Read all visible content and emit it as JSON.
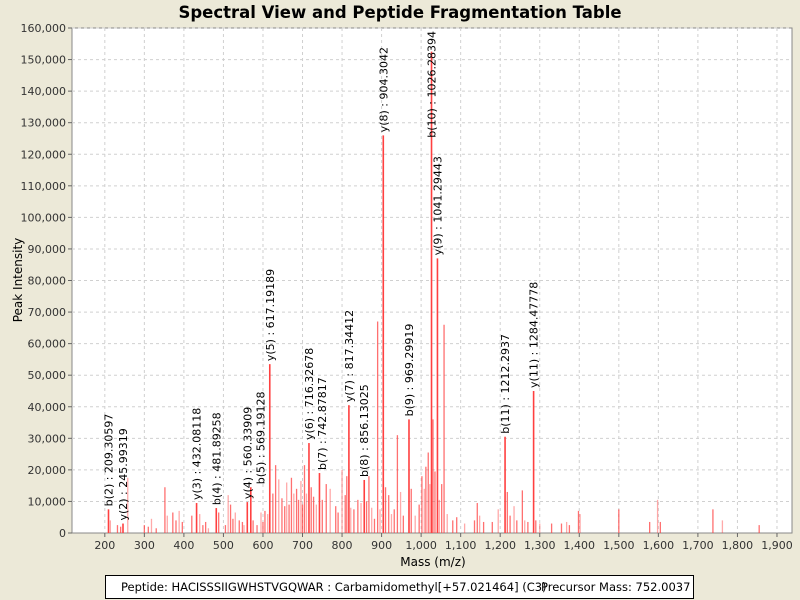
{
  "chart_data": {
    "type": "bar",
    "title": "Spectral View and Peptide Fragmentation Table",
    "xlabel": "Mass (m/z)",
    "ylabel": "Peak Intensity",
    "xlim": [
      117,
      1938
    ],
    "ylim": [
      0,
      160000
    ],
    "xticks": [
      200,
      300,
      400,
      500,
      600,
      700,
      800,
      900,
      1000,
      1100,
      1200,
      1300,
      1400,
      1500,
      1600,
      1700,
      1800,
      1900
    ],
    "xtick_labels": [
      "200",
      "300",
      "400",
      "500",
      "600",
      "700",
      "800",
      "900",
      "1,000",
      "1,100",
      "1,200",
      "1,300",
      "1,400",
      "1,500",
      "1,600",
      "1,700",
      "1,800",
      "1,900"
    ],
    "yticks": [
      0,
      10000,
      20000,
      30000,
      40000,
      50000,
      60000,
      70000,
      80000,
      90000,
      100000,
      110000,
      120000,
      130000,
      140000,
      150000,
      160000
    ],
    "ytick_labels": [
      "0",
      "10,000",
      "20,000",
      "30,000",
      "40,000",
      "50,000",
      "60,000",
      "70,000",
      "80,000",
      "90,000",
      "100,000",
      "110,000",
      "120,000",
      "130,000",
      "140,000",
      "150,000",
      "160,000"
    ],
    "grid": true,
    "color": "#ff4040",
    "annotations": [
      {
        "label": "b(2) : 209.30597",
        "mz": 209.31,
        "intensity": 7500
      },
      {
        "label": "y(2) : 245.99319",
        "mz": 245.99,
        "intensity": 3000
      },
      {
        "label": "y(3) : 432.08118",
        "mz": 432.08,
        "intensity": 9500
      },
      {
        "label": "b(4) : 481.89258",
        "mz": 481.89,
        "intensity": 7900
      },
      {
        "label": "y(4) : 560.33909",
        "mz": 560.34,
        "intensity": 9800
      },
      {
        "label": "b(5) : 569.19128",
        "mz": 569.19,
        "intensity": 14500
      },
      {
        "label": "y(5) : 617.19189",
        "mz": 617.19,
        "intensity": 53500
      },
      {
        "label": "y(6) : 716.32678",
        "mz": 716.33,
        "intensity": 28500
      },
      {
        "label": "b(7) : 742.87817",
        "mz": 742.88,
        "intensity": 19000
      },
      {
        "label": "y(7) : 817.34412",
        "mz": 817.34,
        "intensity": 40500
      },
      {
        "label": "b(8) : 856.13025",
        "mz": 856.13,
        "intensity": 16800
      },
      {
        "label": "y(8) : 904.3042",
        "mz": 904.3,
        "intensity": 126000
      },
      {
        "label": "b(9) : 969.29919",
        "mz": 969.3,
        "intensity": 36000
      },
      {
        "label": "b(10) : 1026.28394",
        "mz": 1026.28,
        "intensity": 152500
      },
      {
        "label": "y(9) : 1041.29443",
        "mz": 1041.29,
        "intensity": 87000
      },
      {
        "label": "b(11) : 1212.2937",
        "mz": 1212.29,
        "intensity": 30500
      },
      {
        "label": "y(11) : 1284.47778",
        "mz": 1284.48,
        "intensity": 45000
      }
    ],
    "peaks": [
      [
        214,
        4000
      ],
      [
        232,
        2500
      ],
      [
        240,
        2000
      ],
      [
        258,
        17500
      ],
      [
        300,
        2500
      ],
      [
        310,
        2000
      ],
      [
        318,
        4500
      ],
      [
        330,
        1500
      ],
      [
        352,
        14500
      ],
      [
        358,
        5500
      ],
      [
        372,
        6500
      ],
      [
        380,
        4000
      ],
      [
        388,
        7000
      ],
      [
        396,
        3500
      ],
      [
        420,
        5500
      ],
      [
        440,
        6000
      ],
      [
        448,
        2500
      ],
      [
        455,
        3500
      ],
      [
        462,
        1500
      ],
      [
        488,
        6500
      ],
      [
        505,
        2500
      ],
      [
        512,
        12000
      ],
      [
        518,
        9000
      ],
      [
        524,
        4500
      ],
      [
        530,
        6500
      ],
      [
        540,
        4000
      ],
      [
        548,
        3500
      ],
      [
        552,
        2500
      ],
      [
        575,
        4000
      ],
      [
        585,
        2500
      ],
      [
        595,
        6500
      ],
      [
        600,
        3500
      ],
      [
        605,
        7000
      ],
      [
        612,
        6000
      ],
      [
        625,
        12500
      ],
      [
        632,
        21500
      ],
      [
        640,
        17000
      ],
      [
        648,
        11000
      ],
      [
        655,
        8500
      ],
      [
        660,
        16000
      ],
      [
        666,
        9000
      ],
      [
        672,
        17500
      ],
      [
        678,
        12500
      ],
      [
        685,
        14000
      ],
      [
        690,
        10500
      ],
      [
        696,
        16500
      ],
      [
        700,
        9000
      ],
      [
        705,
        21500
      ],
      [
        710,
        12500
      ],
      [
        722,
        14500
      ],
      [
        728,
        11500
      ],
      [
        735,
        9000
      ],
      [
        750,
        10500
      ],
      [
        760,
        15500
      ],
      [
        770,
        14000
      ],
      [
        784,
        8500
      ],
      [
        790,
        6500
      ],
      [
        800,
        20000
      ],
      [
        808,
        12000
      ],
      [
        812,
        18000
      ],
      [
        822,
        8000
      ],
      [
        830,
        7500
      ],
      [
        840,
        10500
      ],
      [
        848,
        9500
      ],
      [
        862,
        10000
      ],
      [
        868,
        18000
      ],
      [
        875,
        8000
      ],
      [
        882,
        4500
      ],
      [
        890,
        67000
      ],
      [
        896,
        7500
      ],
      [
        910,
        14500
      ],
      [
        918,
        12000
      ],
      [
        925,
        6000
      ],
      [
        932,
        7500
      ],
      [
        940,
        31000
      ],
      [
        948,
        13000
      ],
      [
        955,
        5500
      ],
      [
        975,
        14000
      ],
      [
        985,
        5500
      ],
      [
        995,
        9000
      ],
      [
        1002,
        18000
      ],
      [
        1008,
        14000
      ],
      [
        1012,
        21000
      ],
      [
        1018,
        25500
      ],
      [
        1022,
        15500
      ],
      [
        1030,
        36000
      ],
      [
        1035,
        19500
      ],
      [
        1046,
        10500
      ],
      [
        1052,
        15500
      ],
      [
        1058,
        66000
      ],
      [
        1066,
        6000
      ],
      [
        1080,
        4000
      ],
      [
        1090,
        5000
      ],
      [
        1110,
        3000
      ],
      [
        1135,
        4000
      ],
      [
        1142,
        9500
      ],
      [
        1148,
        5500
      ],
      [
        1158,
        3500
      ],
      [
        1180,
        3500
      ],
      [
        1195,
        7500
      ],
      [
        1218,
        13000
      ],
      [
        1225,
        5500
      ],
      [
        1235,
        8500
      ],
      [
        1242,
        4000
      ],
      [
        1256,
        13500
      ],
      [
        1262,
        4000
      ],
      [
        1270,
        3500
      ],
      [
        1290,
        4000
      ],
      [
        1300,
        3000
      ],
      [
        1330,
        3000
      ],
      [
        1355,
        3000
      ],
      [
        1368,
        3500
      ],
      [
        1375,
        2500
      ],
      [
        1398,
        7000
      ],
      [
        1402,
        6000
      ],
      [
        1500,
        7500
      ],
      [
        1578,
        3500
      ],
      [
        1598,
        10500
      ],
      [
        1605,
        3500
      ],
      [
        1738,
        7500
      ],
      [
        1762,
        4000
      ],
      [
        1855,
        2500
      ]
    ]
  },
  "footer": {
    "peptide": "Peptide: HACISSSIIGWHSTVGQWAR : Carbamidomethyl[+57.021464] (C3)",
    "precursor": "Precursor Mass: 752.0037"
  }
}
